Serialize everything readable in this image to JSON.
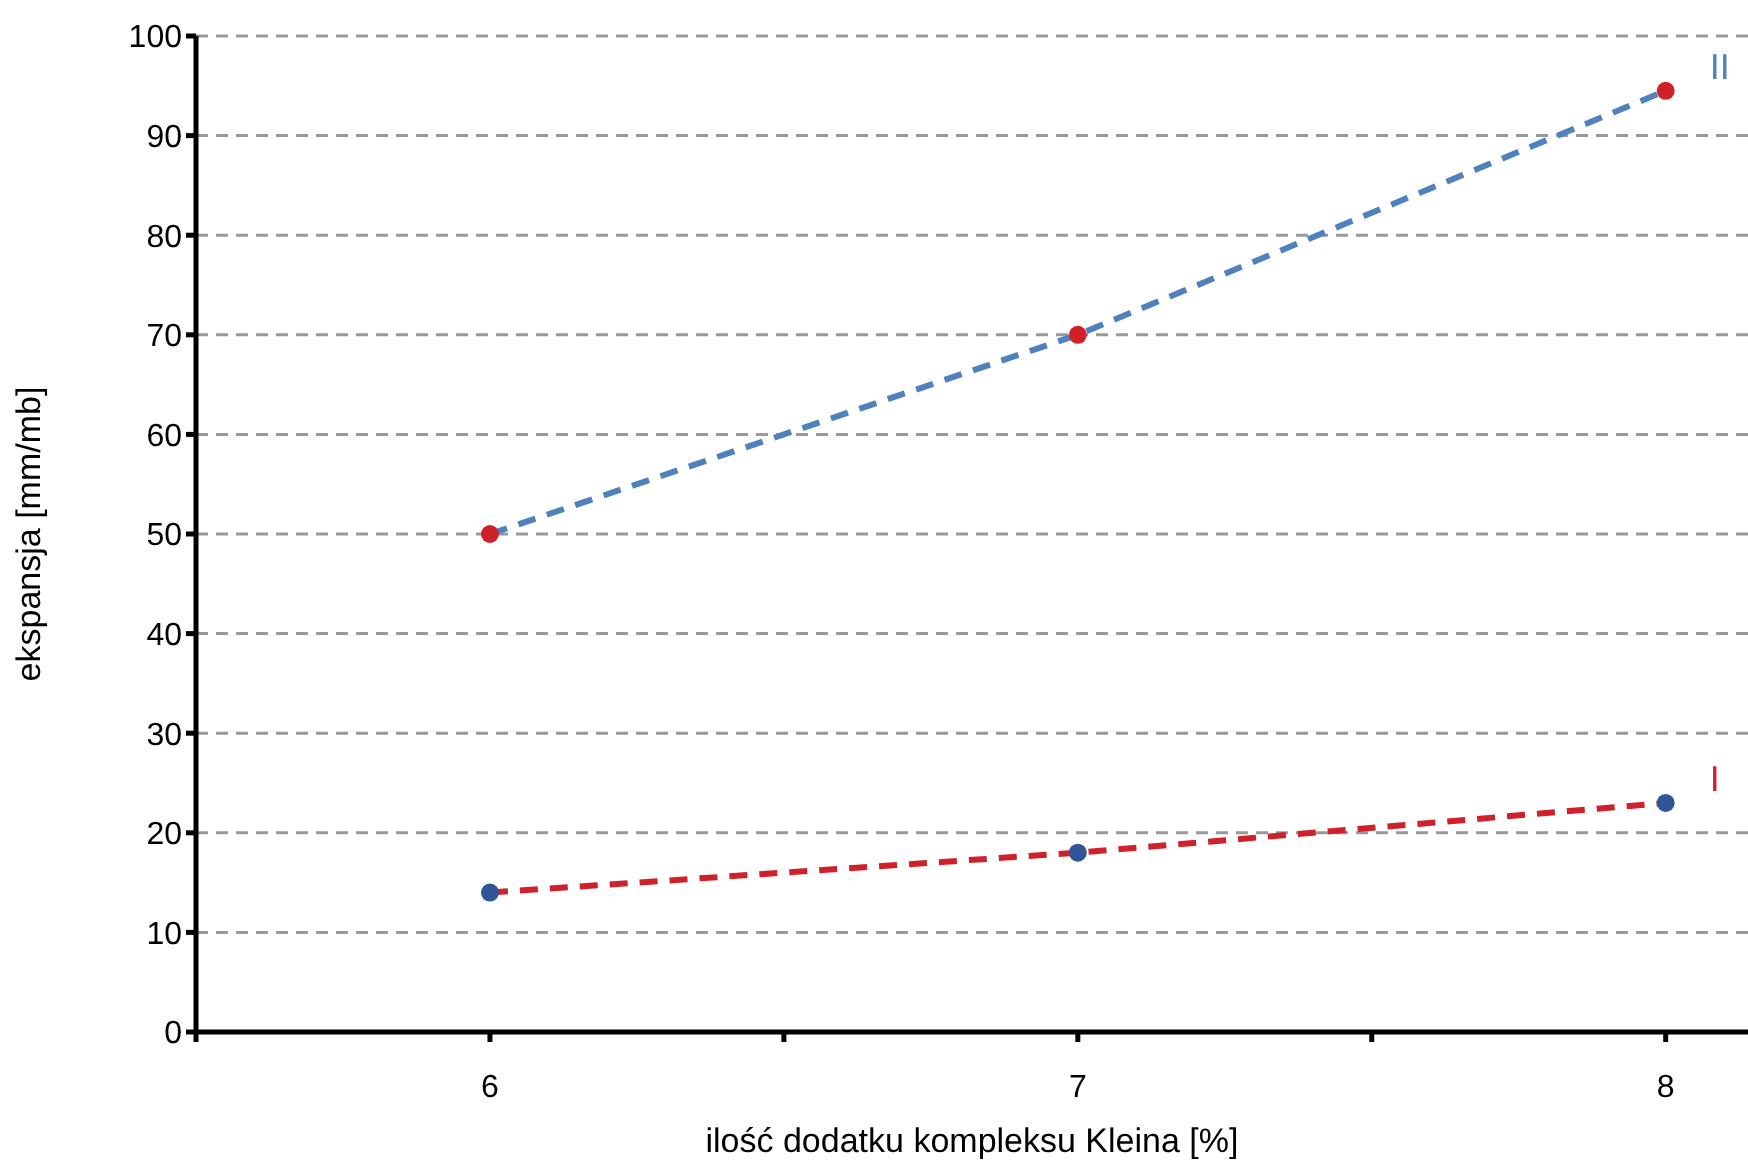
{
  "chart_data": {
    "type": "line",
    "xlabel": "ilość dodatku kompleksu Kleina [%]",
    "ylabel": "ekspansja [mm/mb]",
    "x": [
      6,
      7,
      8
    ],
    "series": [
      {
        "name": "II",
        "color": "#4f81bd",
        "colors": [
          "#d0202a",
          "#d0202a",
          "#d0202a"
        ],
        "values": [
          50,
          70,
          94.5
        ]
      },
      {
        "name": "I",
        "color": "#d0202a",
        "colors": [
          "#2f5597",
          "#2f5597",
          "#2f5597"
        ],
        "values": [
          14,
          18,
          23
        ]
      }
    ],
    "xlim": [
      5.5,
      8.14
    ],
    "xticks": [
      {
        "value": 5.5,
        "label": null
      },
      6,
      {
        "value": 6.5,
        "label": null
      },
      7,
      {
        "value": 7.5,
        "label": null
      },
      8
    ],
    "ylim": [
      0,
      100
    ],
    "yticks": [
      0,
      10,
      20,
      30,
      40,
      50,
      60,
      70,
      80,
      90,
      100
    ],
    "grid": "y",
    "legend": false,
    "marker": "circle",
    "line_style": "dashed"
  }
}
